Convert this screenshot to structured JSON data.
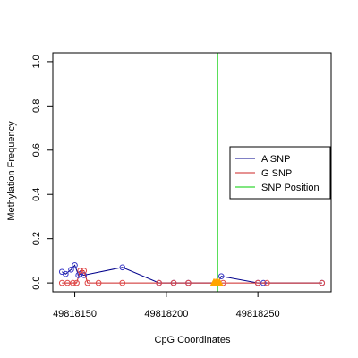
{
  "chart_data": {
    "type": "scatter",
    "title": "",
    "xlabel": "CpG Coordinates",
    "ylabel": "Methylation Frequency",
    "xlim": [
      49818138,
      49818290
    ],
    "ylim": [
      -0.04,
      1.04
    ],
    "x_ticks": [
      49818150,
      49818200,
      49818250
    ],
    "y_ticks": [
      0.0,
      0.2,
      0.4,
      0.6,
      0.8,
      1.0
    ],
    "x_tick_labels": [
      "49818150",
      "49818200",
      "49818250"
    ],
    "y_tick_labels": [
      "0.0",
      "0.2",
      "0.4",
      "0.6",
      "0.8",
      "1.0"
    ],
    "grid": false,
    "legend": {
      "placement": "right",
      "entries": [
        {
          "label": "A SNP",
          "color": "#00008B"
        },
        {
          "label": "G SNP",
          "color": "#CD2626"
        },
        {
          "label": "SNP Position",
          "color": "#00CD00"
        }
      ]
    },
    "snp_position": 49818228,
    "series": [
      {
        "name": "A SNP",
        "color": "#00008B",
        "marker_color": "#3A3AC8",
        "x": [
          49818143,
          49818145,
          49818148,
          49818150,
          49818152,
          49818153,
          49818155,
          49818176,
          49818196,
          49818204,
          49818212,
          49818228,
          49818230,
          49818250,
          49818253,
          49818285
        ],
        "y": [
          0.05,
          0.04,
          0.06,
          0.08,
          0.035,
          0.04,
          0.035,
          0.07,
          0.0,
          0.0,
          0.0,
          0.0,
          0.03,
          0.0,
          0.0,
          0.0
        ]
      },
      {
        "name": "G SNP",
        "color": "#CD2626",
        "marker_color": "#E04848",
        "x": [
          49818143,
          49818146,
          49818149,
          49818151,
          49818153,
          49818155,
          49818157,
          49818163,
          49818176,
          49818196,
          49818204,
          49818212,
          49818227,
          49818231,
          49818250,
          49818255,
          49818285
        ],
        "y": [
          0.0,
          0.0,
          0.0,
          0.0,
          0.055,
          0.055,
          0.0,
          0.0,
          0.0,
          0.0,
          0.0,
          0.0,
          0.0,
          0.0,
          0.0,
          0.0,
          0.0
        ]
      }
    ],
    "snp_markers": {
      "color": "#FFA500",
      "x": [
        49818226,
        49818227,
        49818228,
        49818229
      ],
      "y": [
        0.0,
        0.0,
        0.0,
        0.0
      ]
    }
  }
}
